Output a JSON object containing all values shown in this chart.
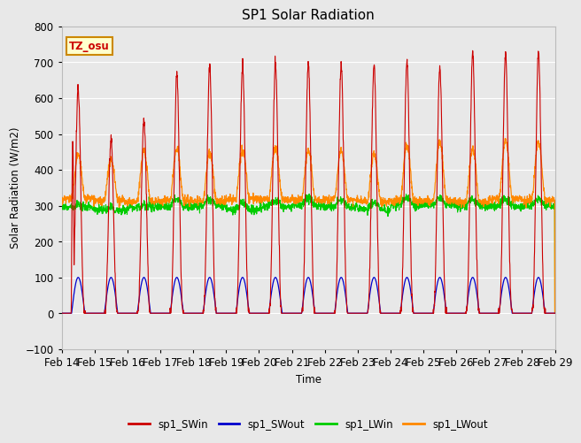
{
  "title": "SP1 Solar Radiation",
  "ylabel": "Solar Radiation (W/m2)",
  "xlabel": "Time",
  "ylim": [
    -100,
    800
  ],
  "n_days": 15,
  "tz_label": "TZ_osu",
  "x_tick_labels": [
    "Feb 14",
    "Feb 15",
    "Feb 16",
    "Feb 17",
    "Feb 18",
    "Feb 19",
    "Feb 20",
    "Feb 21",
    "Feb 22",
    "Feb 23",
    "Feb 24",
    "Feb 25",
    "Feb 26",
    "Feb 27",
    "Feb 28",
    "Feb 29"
  ],
  "colors": {
    "SWin": "#cc0000",
    "SWout": "#0000cc",
    "LWin": "#00cc00",
    "LWout": "#ff8800"
  },
  "bg_color": "#e8e8e8",
  "plot_bg": "#e8e8e8",
  "grid_color": "#ffffff",
  "legend_labels": [
    "sp1_SWin",
    "sp1_SWout",
    "sp1_LWin",
    "sp1_LWout"
  ],
  "sw_in_peaks": [
    630,
    480,
    540,
    665,
    695,
    690,
    693,
    700,
    693,
    695,
    700,
    685,
    725,
    725,
    730
  ],
  "lw_out_peaks": [
    440,
    430,
    455,
    460,
    450,
    455,
    460,
    455,
    455,
    445,
    470,
    480,
    460,
    480,
    480
  ],
  "lw_in_base": 295,
  "lw_out_base": 315,
  "sw_out_max": 100
}
